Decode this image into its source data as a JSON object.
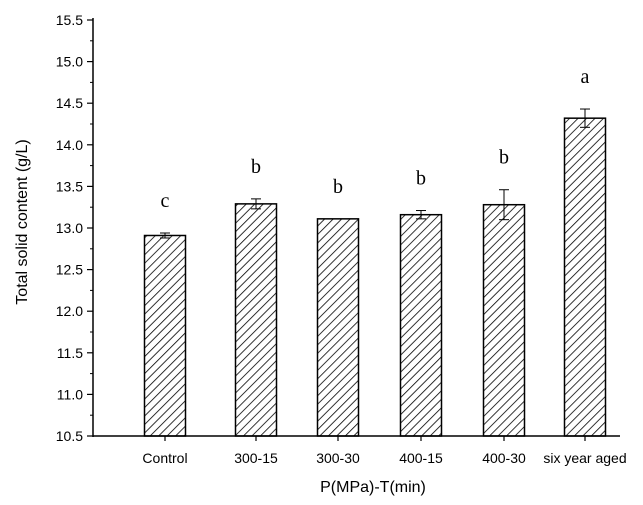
{
  "chart_data": {
    "type": "bar",
    "title": "",
    "xlabel": "P(MPa)-T(min)",
    "ylabel": "Total solid content (g/L)",
    "categories": [
      "Control",
      "300-15",
      "300-30",
      "400-15",
      "400-30",
      "six year aged"
    ],
    "values": [
      12.91,
      13.29,
      13.11,
      13.16,
      13.28,
      14.32
    ],
    "errors": [
      0.03,
      0.06,
      0.0,
      0.05,
      0.18,
      0.11
    ],
    "significance_letters": [
      "c",
      "b",
      "b",
      "b",
      "b",
      "a"
    ],
    "ylim": [
      10.5,
      15.5
    ],
    "yticks": [
      "10.5",
      "11.0",
      "11.5",
      "12.0",
      "12.5",
      "13.0",
      "13.5",
      "14.0",
      "14.5",
      "15.0",
      "15.5"
    ],
    "grid": false,
    "legend": "none",
    "bar_fill": "diagonal hatch",
    "bar_color": "#000000"
  }
}
